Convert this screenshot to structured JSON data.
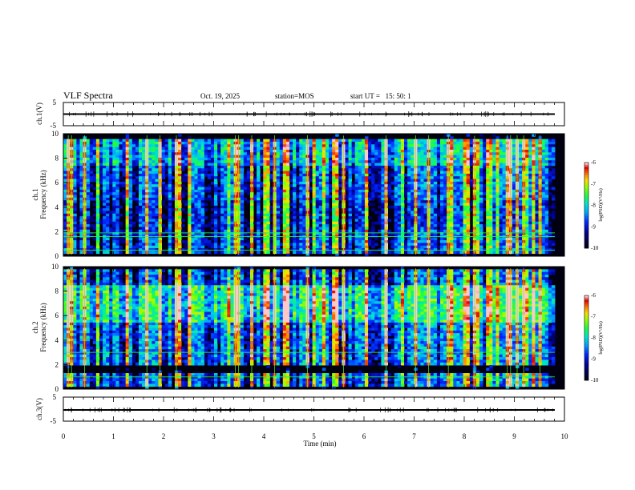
{
  "header": {
    "title": "VLF Spectra",
    "date": "Oct. 19, 2025",
    "station": "station=MOS",
    "start": "start UT =   15: 50: 1"
  },
  "chart_data": [
    {
      "type": "line",
      "name": "ch.1 waveform",
      "ylabel": "ch.1(V)",
      "ylim": [
        -5,
        5
      ],
      "yticks": [
        "5",
        "-5"
      ],
      "series": [
        {
          "name": "ch.1",
          "baseline": 0
        }
      ]
    },
    {
      "type": "heatmap",
      "name": "ch.1 spectrogram",
      "ylabel_top": "ch.1",
      "ylabel": "Frequency (kHz)",
      "ylim": [
        0,
        10
      ],
      "yticks": [
        "0",
        "2",
        "4",
        "6",
        "8",
        "10"
      ],
      "colorbar": {
        "label": "log(PSD)(V²/Hz)",
        "ticks": [
          "-6",
          "-7",
          "-8",
          "-9",
          "-10"
        ],
        "range": [
          -10,
          -6
        ]
      },
      "bands": [
        {
          "from": 7.5,
          "to": 9.6,
          "level": 0.52
        },
        {
          "from": 4.5,
          "to": 7.5,
          "level": 0.38
        },
        {
          "from": 2.2,
          "to": 4.5,
          "level": 0.3
        },
        {
          "from": 0.3,
          "to": 2.2,
          "level": 0.36
        }
      ],
      "lines_khz": [
        0.5,
        1.6,
        1.9
      ]
    },
    {
      "type": "heatmap",
      "name": "ch.2 spectrogram",
      "ylabel_top": "ch.2",
      "ylabel": "Frequency (kHz)",
      "ylim": [
        0,
        10
      ],
      "yticks": [
        "0",
        "2",
        "4",
        "6",
        "8",
        "10"
      ],
      "colorbar": {
        "label": "log(PSD)(V²/Hz)",
        "ticks": [
          "-6",
          "-7",
          "-8",
          "-9",
          "-10"
        ],
        "range": [
          -10,
          -6
        ]
      },
      "bands": [
        {
          "from": 5.5,
          "to": 8.5,
          "level": 0.62
        },
        {
          "from": 8.5,
          "to": 9.8,
          "level": 0.36
        },
        {
          "from": 2.0,
          "to": 5.5,
          "level": 0.42
        },
        {
          "from": 0.3,
          "to": 1.3,
          "level": 0.38
        }
      ],
      "lines_khz": [
        1.0,
        3.0
      ]
    },
    {
      "type": "line",
      "name": "ch.3 waveform",
      "ylabel": "ch.3(V)",
      "ylim": [
        -5,
        5
      ],
      "yticks": [
        "5",
        "-5"
      ],
      "series": [
        {
          "name": "ch.3",
          "baseline": 0
        }
      ]
    }
  ],
  "xaxis": {
    "label": "Time (min)",
    "xlim": [
      0,
      10
    ],
    "ticks": [
      "0",
      "1",
      "2",
      "3",
      "4",
      "5",
      "6",
      "7",
      "8",
      "9",
      "10"
    ]
  }
}
